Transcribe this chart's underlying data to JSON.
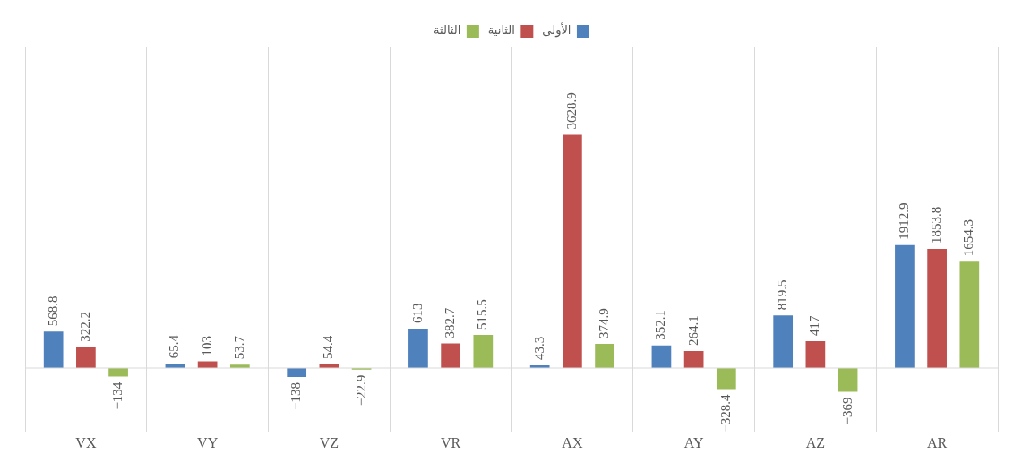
{
  "chart_data": {
    "type": "bar",
    "categories": [
      "VX",
      "VY",
      "VZ",
      "VR",
      "AX",
      "AY",
      "AZ",
      "AR"
    ],
    "series": [
      {
        "name": "الأولى",
        "color": "#4f81bd",
        "values": [
          568.8,
          65.4,
          -138,
          613,
          43.3,
          352.1,
          819.5,
          1912.9
        ]
      },
      {
        "name": "الثانية",
        "color": "#c0504d",
        "values": [
          322.2,
          103,
          54.4,
          382.7,
          3628.9,
          264.1,
          417,
          1853.8
        ]
      },
      {
        "name": "الثالثة",
        "color": "#9bbb59",
        "values": [
          -134,
          53.7,
          -22.9,
          515.5,
          374.9,
          -328.4,
          -369,
          1654.3
        ]
      }
    ],
    "data_labels": true,
    "grid": "x",
    "legend": "top"
  }
}
